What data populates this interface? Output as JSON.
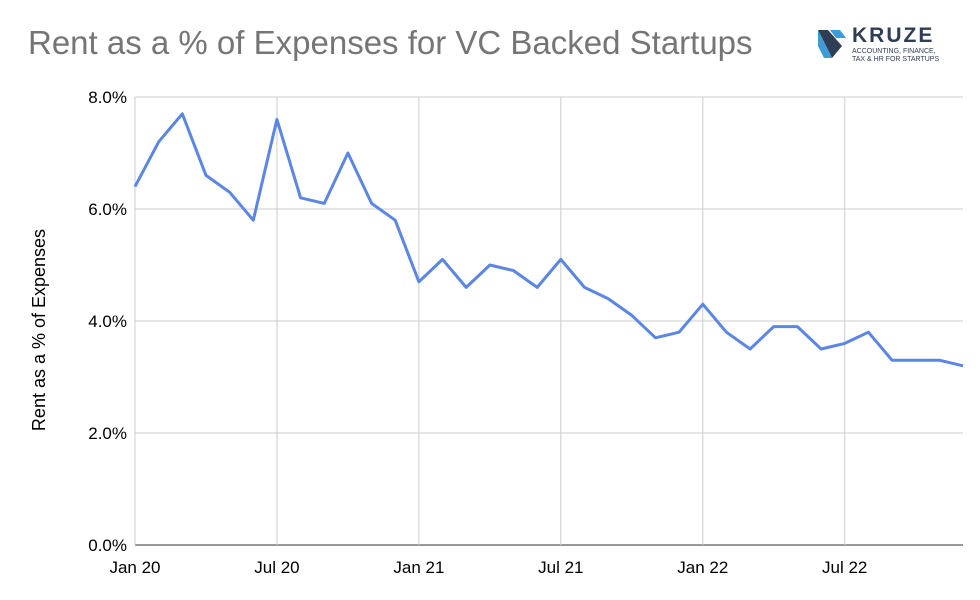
{
  "title": "Rent as a % of Expenses for VC Backed Startups",
  "logo": {
    "name": "KRUZE",
    "tagline_1": "ACCOUNTING, FINANCE,",
    "tagline_2": "TAX & HR FOR STARTUPS",
    "icon": "kruze-chevron-icon"
  },
  "colors": {
    "line": "#5b86e5",
    "grid": "#cccccc",
    "title": "#757575",
    "logo": "#2f3e55",
    "logo_accent": "#3d9bd6"
  },
  "chart_data": {
    "type": "line",
    "title": "Rent as a % of Expenses for VC Backed Startups",
    "xlabel": "",
    "ylabel": "Rent as a % of Expenses",
    "ylim": [
      0,
      8
    ],
    "yticks": [
      "0.0%",
      "2.0%",
      "4.0%",
      "6.0%",
      "8.0%"
    ],
    "xticks": [
      "Jan 20",
      "Jul 20",
      "Jan 21",
      "Jul 21",
      "Jan 22",
      "Jul 22"
    ],
    "grid": true,
    "legend": "none",
    "x": [
      "2020-01",
      "2020-02",
      "2020-03",
      "2020-04",
      "2020-05",
      "2020-06",
      "2020-07",
      "2020-08",
      "2020-09",
      "2020-10",
      "2020-11",
      "2020-12",
      "2021-01",
      "2021-02",
      "2021-03",
      "2021-04",
      "2021-05",
      "2021-06",
      "2021-07",
      "2021-08",
      "2021-09",
      "2021-10",
      "2021-11",
      "2021-12",
      "2022-01",
      "2022-02",
      "2022-03",
      "2022-04",
      "2022-05",
      "2022-06",
      "2022-07",
      "2022-08",
      "2022-09",
      "2022-10",
      "2022-11",
      "2022-12"
    ],
    "series": [
      {
        "name": "",
        "values": [
          6.4,
          7.2,
          7.7,
          6.6,
          6.3,
          5.8,
          7.6,
          6.2,
          6.1,
          7.0,
          6.1,
          5.8,
          4.7,
          5.1,
          4.6,
          5.0,
          4.9,
          4.6,
          5.1,
          4.6,
          4.4,
          4.1,
          3.7,
          3.8,
          4.3,
          3.8,
          3.5,
          3.9,
          3.9,
          3.5,
          3.6,
          3.8,
          3.3,
          3.3,
          3.3,
          3.2
        ]
      }
    ]
  }
}
